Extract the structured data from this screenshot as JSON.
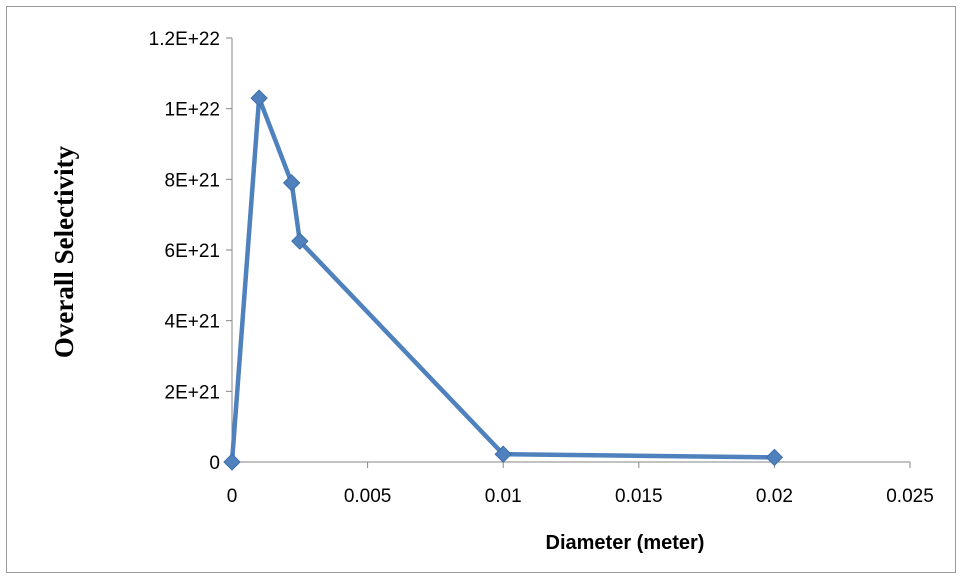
{
  "chart_data": {
    "type": "line",
    "title": "",
    "xlabel": "Diameter (meter)",
    "ylabel": "Overall Selectivity",
    "xlim": [
      0,
      0.025
    ],
    "ylim": [
      0,
      1.2e+22
    ],
    "x_ticks": [
      0,
      0.005,
      0.01,
      0.015,
      0.02,
      0.025
    ],
    "x_tick_labels": [
      "0",
      "0.005",
      "0.01",
      "0.015",
      "0.02",
      "0.025"
    ],
    "y_ticks": [
      0,
      2e+21,
      4e+21,
      6e+21,
      8e+21,
      1e+22,
      1.2e+22
    ],
    "y_tick_labels": [
      "0",
      "2E+21",
      "4E+21",
      "6E+21",
      "8E+21",
      "1E+22",
      "1.2E+22"
    ],
    "grid": false,
    "legend": "none",
    "marker": "diamond",
    "color": "#4F81BD",
    "series": [
      {
        "x": [
          0,
          0.001,
          0.0022,
          0.0025,
          0.01,
          0.02
        ],
        "y": [
          0,
          1.03e+22,
          7.9e+21,
          6.25e+21,
          2.2e+20,
          1.3e+20
        ]
      }
    ]
  }
}
